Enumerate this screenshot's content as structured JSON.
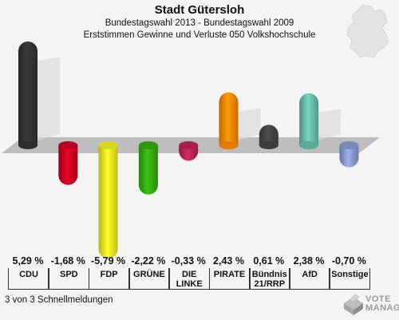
{
  "header": {
    "title": "Stadt Gütersloh",
    "subtitle": "Bundestagswahl 2013 - Bundestagswahl 2009",
    "subtitle2": "Erststimmen Gewinne und Verluste 050 Volkshochschule"
  },
  "chart_data": {
    "type": "bar",
    "title": "Stadt Gütersloh",
    "categories": [
      "CDU",
      "SPD",
      "FDP",
      "GRÜNE",
      "DIE LINKE",
      "PIRATE",
      "Bündnis 21/RRP",
      "AfD",
      "Sonstige"
    ],
    "values": [
      5.29,
      -1.68,
      -5.79,
      -2.22,
      -0.33,
      2.43,
      0.61,
      2.38,
      -0.7
    ],
    "value_labels": [
      "5,29 %",
      "-1,68 %",
      "-5,79 %",
      "-2,22 %",
      "-0,33 %",
      "2,43 %",
      "0,61 %",
      "2,38 %",
      "-0,70 %"
    ],
    "colors": [
      "#333333",
      "#cc0022",
      "#eeee22",
      "#33aa11",
      "#bb2255",
      "#ff8800",
      "#444444",
      "#66bbaa",
      "#8899cc"
    ],
    "ylim": [
      -5.79,
      5.29
    ],
    "grid": false,
    "legend": "none"
  },
  "labels": {
    "row1": [
      "CDU",
      "SPD",
      "FDP",
      "GRÜNE",
      "DIE",
      "PIRATE",
      "Bündnis",
      "AfD",
      "Sonstige"
    ],
    "row2": [
      "",
      "",
      "",
      "",
      "LINKE",
      "",
      "21/RRP",
      "",
      ""
    ]
  },
  "footer": {
    "text": "3 von 3 Schnellmeldungen"
  },
  "logo": {
    "line1": "VOTE",
    "line2": "MANAGER"
  }
}
